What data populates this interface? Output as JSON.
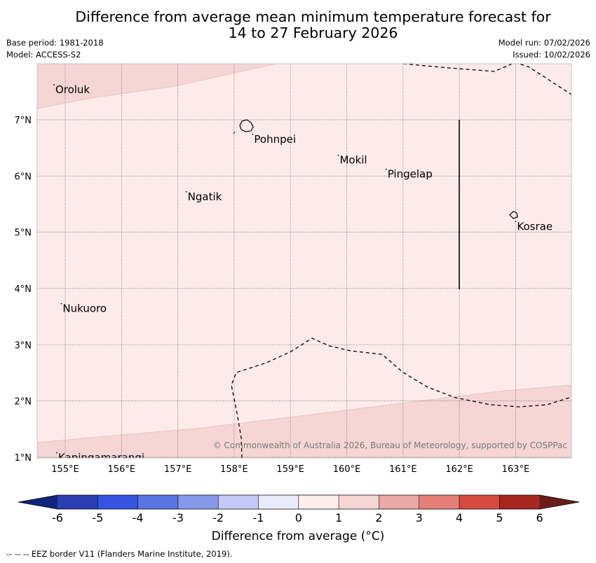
{
  "title": {
    "line1": "Difference from average mean minimum temperature forecast for",
    "line2": "14 to 27 February 2026"
  },
  "meta": {
    "base_period": "Base period: 1981-2018",
    "model": "Model: ACCESS-S2",
    "model_run": "Model run: 07/02/2026",
    "issued": "Issued: 10/02/2026"
  },
  "map": {
    "lon_labels": [
      "155°E",
      "156°E",
      "157°E",
      "158°E",
      "159°E",
      "160°E",
      "161°E",
      "162°E",
      "163°E"
    ],
    "lat_labels": [
      "7°N",
      "6°N",
      "5°N",
      "4°N",
      "3°N",
      "2°N",
      "1°N"
    ],
    "places": [
      {
        "name": "Oroluk",
        "lon": 154.8,
        "lat": 7.62
      },
      {
        "name": "Pohnpei",
        "lon": 158.33,
        "lat": 6.74
      },
      {
        "name": "Mokil",
        "lon": 159.85,
        "lat": 6.37
      },
      {
        "name": "Pingelap",
        "lon": 160.7,
        "lat": 6.12
      },
      {
        "name": "Ngatik",
        "lon": 157.15,
        "lat": 5.72
      },
      {
        "name": "Kosrae",
        "lon": 163.0,
        "lat": 5.19
      },
      {
        "name": "Nukuoro",
        "lon": 154.93,
        "lat": 3.73
      },
      {
        "name": "Kapingamarangi",
        "lon": 154.85,
        "lat": 1.08
      }
    ],
    "copyright": "© Commonwealth of Australia 2026, Bureau of Meteorology, supported by COSPPac",
    "anomaly_colors": {
      "zero_to_one": "#fcebe9",
      "one_to_two": "#f5d6d5"
    }
  },
  "colorbar": {
    "title": "Difference from average (°C)",
    "ticks": [
      "-6",
      "-5",
      "-4",
      "-3",
      "-2",
      "-1",
      "0",
      "1",
      "2",
      "3",
      "4",
      "5",
      "6"
    ],
    "colors": [
      "#12237a",
      "#2a3eb2",
      "#3553e0",
      "#5b74e3",
      "#8699ea",
      "#c2c9f5",
      "#e9ebfb",
      "#fdeeed",
      "#f5d6d5",
      "#eba9a6",
      "#e57f78",
      "#d74a3f",
      "#a7261f",
      "#6a1c16"
    ]
  },
  "footer": "--  --  -- EEZ border V11 (Flanders Marine Institute, 2019)."
}
